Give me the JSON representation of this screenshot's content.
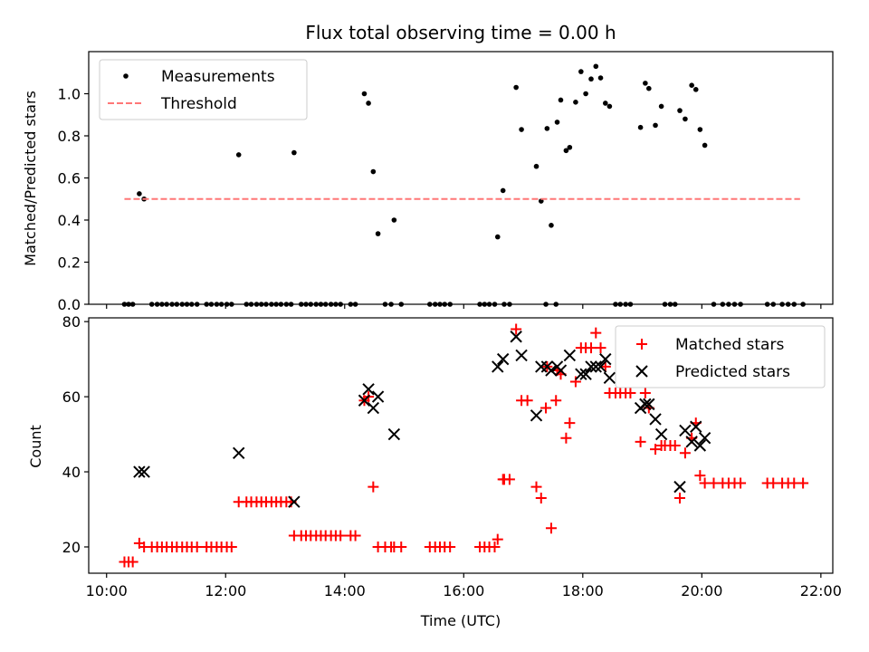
{
  "chart_data": [
    {
      "type": "scatter",
      "title": "Flux total observing time = 0.00 h",
      "xlabel": "",
      "ylabel": "Matched/Predicted stars",
      "xlim": [
        9.7,
        22.2
      ],
      "ylim": [
        0,
        1.2
      ],
      "yticks": [
        0.0,
        0.2,
        0.4,
        0.6,
        0.8,
        1.0
      ],
      "ytick_labels": [
        "0.0",
        "0.2",
        "0.4",
        "0.6",
        "0.8",
        "1.0"
      ],
      "legend_position": "top-left",
      "series": [
        {
          "name": "Measurements",
          "color": "#000000",
          "marker": "dot",
          "points": [
            [
              10.3,
              0
            ],
            [
              10.37,
              0
            ],
            [
              10.44,
              0
            ],
            [
              10.55,
              0.525
            ],
            [
              10.63,
              0.5
            ],
            [
              10.76,
              0
            ],
            [
              10.85,
              0
            ],
            [
              10.93,
              0
            ],
            [
              11.01,
              0
            ],
            [
              11.1,
              0
            ],
            [
              11.18,
              0
            ],
            [
              11.27,
              0
            ],
            [
              11.35,
              0
            ],
            [
              11.43,
              0
            ],
            [
              11.52,
              0
            ],
            [
              11.68,
              0
            ],
            [
              11.76,
              0
            ],
            [
              11.85,
              0
            ],
            [
              11.93,
              0
            ],
            [
              12.02,
              0
            ],
            [
              12.1,
              0
            ],
            [
              12.22,
              0.71
            ],
            [
              12.35,
              0
            ],
            [
              12.43,
              0
            ],
            [
              12.52,
              0
            ],
            [
              12.6,
              0
            ],
            [
              12.68,
              0
            ],
            [
              12.77,
              0
            ],
            [
              12.85,
              0
            ],
            [
              12.93,
              0
            ],
            [
              13.02,
              0
            ],
            [
              13.1,
              0
            ],
            [
              13.15,
              0.72
            ],
            [
              13.27,
              0
            ],
            [
              13.35,
              0
            ],
            [
              13.43,
              0
            ],
            [
              13.52,
              0
            ],
            [
              13.6,
              0
            ],
            [
              13.68,
              0
            ],
            [
              13.77,
              0
            ],
            [
              13.85,
              0
            ],
            [
              13.93,
              0
            ],
            [
              14.1,
              0
            ],
            [
              14.18,
              0
            ],
            [
              14.33,
              1.0
            ],
            [
              14.4,
              0.955
            ],
            [
              14.48,
              0.63
            ],
            [
              14.56,
              0.335
            ],
            [
              14.68,
              0
            ],
            [
              14.78,
              0
            ],
            [
              14.83,
              0.4
            ],
            [
              14.95,
              0
            ],
            [
              15.43,
              0
            ],
            [
              15.52,
              0
            ],
            [
              15.6,
              0
            ],
            [
              15.68,
              0
            ],
            [
              15.77,
              0
            ],
            [
              16.27,
              0
            ],
            [
              16.35,
              0
            ],
            [
              16.43,
              0
            ],
            [
              16.52,
              0
            ],
            [
              16.57,
              0.32
            ],
            [
              16.66,
              0.54
            ],
            [
              16.68,
              0
            ],
            [
              16.77,
              0
            ],
            [
              16.88,
              1.03
            ],
            [
              16.97,
              0.83
            ],
            [
              17.22,
              0.655
            ],
            [
              17.3,
              0.49
            ],
            [
              17.38,
              0
            ],
            [
              17.4,
              0.835
            ],
            [
              17.47,
              0.375
            ],
            [
              17.55,
              0
            ],
            [
              17.57,
              0.865
            ],
            [
              17.63,
              0.97
            ],
            [
              17.72,
              0.73
            ],
            [
              17.78,
              0.745
            ],
            [
              17.88,
              0.96
            ],
            [
              17.97,
              1.105
            ],
            [
              18.05,
              1.0
            ],
            [
              18.14,
              1.07
            ],
            [
              18.22,
              1.13
            ],
            [
              18.3,
              1.075
            ],
            [
              18.38,
              0.955
            ],
            [
              18.45,
              0.94
            ],
            [
              18.55,
              0
            ],
            [
              18.63,
              0
            ],
            [
              18.72,
              0
            ],
            [
              18.8,
              0
            ],
            [
              18.97,
              0.84
            ],
            [
              19.05,
              1.05
            ],
            [
              19.11,
              1.025
            ],
            [
              19.22,
              0.85
            ],
            [
              19.32,
              0.94
            ],
            [
              19.38,
              0
            ],
            [
              19.47,
              0
            ],
            [
              19.55,
              0
            ],
            [
              19.63,
              0.92
            ],
            [
              19.72,
              0.88
            ],
            [
              19.83,
              1.04
            ],
            [
              19.9,
              1.02
            ],
            [
              19.97,
              0.83
            ],
            [
              20.05,
              0.755
            ],
            [
              20.2,
              0
            ],
            [
              20.35,
              0
            ],
            [
              20.45,
              0
            ],
            [
              20.55,
              0
            ],
            [
              20.65,
              0
            ],
            [
              21.1,
              0
            ],
            [
              21.2,
              0
            ],
            [
              21.35,
              0
            ],
            [
              21.45,
              0
            ],
            [
              21.55,
              0
            ],
            [
              21.7,
              0
            ]
          ]
        },
        {
          "name": "Threshold",
          "color": "#ff7777",
          "marker": "dashed-line",
          "points": [
            [
              10.3,
              0.5
            ],
            [
              21.65,
              0.5
            ]
          ]
        }
      ]
    },
    {
      "type": "scatter",
      "title": "",
      "xlabel": "Time (UTC)",
      "ylabel": "Count",
      "xlim": [
        9.7,
        22.2
      ],
      "ylim": [
        13,
        81
      ],
      "yticks": [
        20,
        40,
        60,
        80
      ],
      "ytick_labels": [
        "20",
        "40",
        "60",
        "80"
      ],
      "xticks": [
        10,
        12,
        14,
        16,
        18,
        20,
        22
      ],
      "xtick_labels": [
        "10:00",
        "12:00",
        "14:00",
        "16:00",
        "18:00",
        "20:00",
        "22:00"
      ],
      "legend_position": "top-right",
      "series": [
        {
          "name": "Matched stars",
          "color": "#ff0000",
          "marker": "plus",
          "points": [
            [
              10.3,
              16
            ],
            [
              10.37,
              16
            ],
            [
              10.44,
              16
            ],
            [
              10.55,
              21
            ],
            [
              10.63,
              20
            ],
            [
              10.76,
              20
            ],
            [
              10.85,
              20
            ],
            [
              10.93,
              20
            ],
            [
              11.01,
              20
            ],
            [
              11.1,
              20
            ],
            [
              11.18,
              20
            ],
            [
              11.27,
              20
            ],
            [
              11.35,
              20
            ],
            [
              11.43,
              20
            ],
            [
              11.52,
              20
            ],
            [
              11.68,
              20
            ],
            [
              11.76,
              20
            ],
            [
              11.85,
              20
            ],
            [
              11.93,
              20
            ],
            [
              12.02,
              20
            ],
            [
              12.1,
              20
            ],
            [
              12.22,
              32
            ],
            [
              12.35,
              32
            ],
            [
              12.43,
              32
            ],
            [
              12.52,
              32
            ],
            [
              12.6,
              32
            ],
            [
              12.68,
              32
            ],
            [
              12.77,
              32
            ],
            [
              12.85,
              32
            ],
            [
              12.93,
              32
            ],
            [
              13.02,
              32
            ],
            [
              13.1,
              32
            ],
            [
              13.15,
              23
            ],
            [
              13.27,
              23
            ],
            [
              13.35,
              23
            ],
            [
              13.43,
              23
            ],
            [
              13.52,
              23
            ],
            [
              13.6,
              23
            ],
            [
              13.68,
              23
            ],
            [
              13.77,
              23
            ],
            [
              13.85,
              23
            ],
            [
              13.93,
              23
            ],
            [
              14.1,
              23
            ],
            [
              14.18,
              23
            ],
            [
              14.33,
              59
            ],
            [
              14.4,
              60
            ],
            [
              14.48,
              36
            ],
            [
              14.56,
              20
            ],
            [
              14.68,
              20
            ],
            [
              14.78,
              20
            ],
            [
              14.83,
              20
            ],
            [
              14.95,
              20
            ],
            [
              15.43,
              20
            ],
            [
              15.52,
              20
            ],
            [
              15.6,
              20
            ],
            [
              15.68,
              20
            ],
            [
              15.77,
              20
            ],
            [
              16.27,
              20
            ],
            [
              16.35,
              20
            ],
            [
              16.43,
              20
            ],
            [
              16.52,
              20
            ],
            [
              16.57,
              22
            ],
            [
              16.66,
              38
            ],
            [
              16.68,
              38
            ],
            [
              16.77,
              38
            ],
            [
              16.88,
              78
            ],
            [
              16.97,
              59
            ],
            [
              17.07,
              59
            ],
            [
              17.22,
              36
            ],
            [
              17.3,
              33
            ],
            [
              17.38,
              57
            ],
            [
              17.4,
              68
            ],
            [
              17.47,
              25
            ],
            [
              17.55,
              59
            ],
            [
              17.57,
              67
            ],
            [
              17.63,
              66
            ],
            [
              17.72,
              49
            ],
            [
              17.78,
              53
            ],
            [
              17.88,
              64
            ],
            [
              17.97,
              73
            ],
            [
              18.05,
              73
            ],
            [
              18.14,
              73
            ],
            [
              18.22,
              77
            ],
            [
              18.3,
              73
            ],
            [
              18.38,
              68
            ],
            [
              18.45,
              61
            ],
            [
              18.55,
              61
            ],
            [
              18.63,
              61
            ],
            [
              18.72,
              61
            ],
            [
              18.8,
              61
            ],
            [
              18.97,
              48
            ],
            [
              19.05,
              61
            ],
            [
              19.11,
              57
            ],
            [
              19.22,
              46
            ],
            [
              19.32,
              47
            ],
            [
              19.38,
              47
            ],
            [
              19.47,
              47
            ],
            [
              19.55,
              47
            ],
            [
              19.63,
              33
            ],
            [
              19.72,
              45
            ],
            [
              19.83,
              49
            ],
            [
              19.9,
              53
            ],
            [
              19.97,
              39
            ],
            [
              20.05,
              37
            ],
            [
              20.2,
              37
            ],
            [
              20.35,
              37
            ],
            [
              20.45,
              37
            ],
            [
              20.55,
              37
            ],
            [
              20.65,
              37
            ],
            [
              21.1,
              37
            ],
            [
              21.2,
              37
            ],
            [
              21.35,
              37
            ],
            [
              21.45,
              37
            ],
            [
              21.55,
              37
            ],
            [
              21.7,
              37
            ]
          ]
        },
        {
          "name": "Predicted stars",
          "color": "#000000",
          "marker": "x",
          "points": [
            [
              10.55,
              40
            ],
            [
              10.63,
              40
            ],
            [
              12.22,
              45
            ],
            [
              13.15,
              32
            ],
            [
              14.33,
              59
            ],
            [
              14.4,
              62
            ],
            [
              14.48,
              57
            ],
            [
              14.56,
              60
            ],
            [
              14.83,
              50
            ],
            [
              16.57,
              68
            ],
            [
              16.66,
              70
            ],
            [
              16.88,
              76
            ],
            [
              16.97,
              71
            ],
            [
              17.22,
              55
            ],
            [
              17.3,
              68
            ],
            [
              17.4,
              68
            ],
            [
              17.47,
              67
            ],
            [
              17.57,
              68
            ],
            [
              17.63,
              67
            ],
            [
              17.78,
              71
            ],
            [
              17.97,
              66
            ],
            [
              18.05,
              66
            ],
            [
              18.14,
              68
            ],
            [
              18.22,
              68
            ],
            [
              18.3,
              68
            ],
            [
              18.38,
              70
            ],
            [
              18.45,
              65
            ],
            [
              18.97,
              57
            ],
            [
              19.05,
              58
            ],
            [
              19.11,
              58
            ],
            [
              19.22,
              54
            ],
            [
              19.32,
              50
            ],
            [
              19.63,
              36
            ],
            [
              19.72,
              51
            ],
            [
              19.83,
              48
            ],
            [
              19.9,
              52
            ],
            [
              19.97,
              47
            ],
            [
              20.05,
              49
            ]
          ]
        }
      ]
    }
  ]
}
